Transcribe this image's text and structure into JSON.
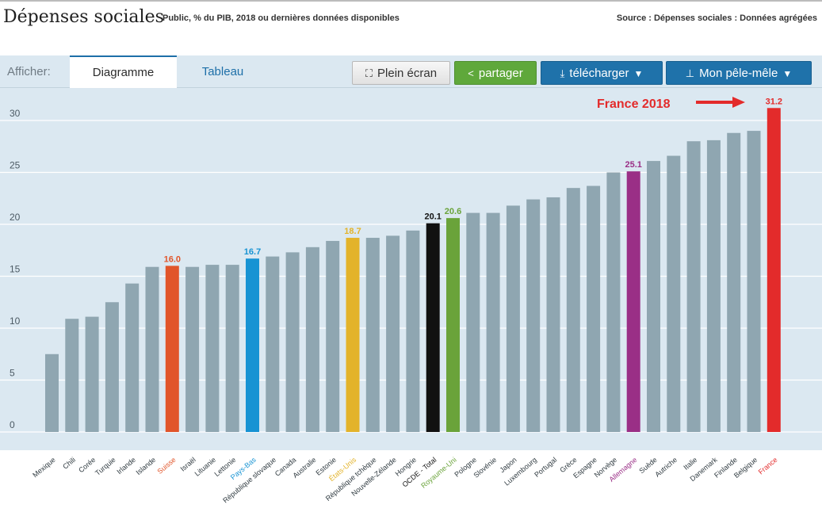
{
  "header": {
    "title": "Dépenses sociales",
    "subtitle": "Public, % du PIB, 2018 ou dernières données disponibles",
    "source": "Source : Dépenses sociales : Données agrégées"
  },
  "toolbar": {
    "show_label": "Afficher:",
    "tabs": [
      {
        "label": "Diagramme",
        "active": true
      },
      {
        "label": "Tableau",
        "active": false
      }
    ],
    "buttons": {
      "fullscreen": "Plein écran",
      "share": "partager",
      "download": "télécharger",
      "pele_mele": "Mon pêle-mêle"
    },
    "icons": {
      "fullscreen": "expand-icon",
      "share": "share-icon",
      "download": "download-icon",
      "pele_mele": "pin-icon"
    }
  },
  "colors": {
    "default_bar": "#8fa6b1",
    "accent_red": "#e32b2b"
  },
  "chart_data": {
    "type": "bar",
    "title": "",
    "xlabel": "",
    "ylabel": "",
    "ylim": [
      0,
      32
    ],
    "yticks": [
      0,
      5,
      10,
      15,
      20,
      25,
      30
    ],
    "grid": true,
    "categories": [
      "Mexique",
      "Chili",
      "Corée",
      "Turquie",
      "Irlande",
      "Islande",
      "Suisse",
      "Israël",
      "Lituanie",
      "Lettonie",
      "Pays-Bas",
      "République slovaque",
      "Canada",
      "Australie",
      "Estonie",
      "États-Unis",
      "République tchèque",
      "Nouvelle-Zélande",
      "Hongrie",
      "OCDE - Total",
      "Royaume-Uni",
      "Pologne",
      "Slovénie",
      "Japon",
      "Luxembourg",
      "Portugal",
      "Grèce",
      "Espagne",
      "Norvège",
      "Allemagne",
      "Suède",
      "Autriche",
      "Italie",
      "Danemark",
      "Finlande",
      "Belgique",
      "France"
    ],
    "values": [
      7.5,
      10.9,
      11.1,
      12.5,
      14.3,
      15.9,
      16.0,
      15.9,
      16.1,
      16.1,
      16.7,
      16.9,
      17.3,
      17.8,
      18.4,
      18.7,
      18.7,
      18.9,
      19.4,
      20.1,
      20.6,
      21.1,
      21.1,
      21.8,
      22.4,
      22.6,
      23.5,
      23.7,
      25.0,
      25.1,
      26.1,
      26.6,
      28.0,
      28.1,
      28.8,
      29.0,
      31.2
    ],
    "highlights": [
      {
        "category": "Suisse",
        "label": "16.0",
        "color": "#e1552a"
      },
      {
        "category": "Pays-Bas",
        "label": "16.7",
        "color": "#1793d3"
      },
      {
        "category": "États-Unis",
        "label": "18.7",
        "color": "#e3b32a"
      },
      {
        "category": "OCDE - Total",
        "label": "20.1",
        "color": "#111111"
      },
      {
        "category": "Royaume-Uni",
        "label": "20.6",
        "color": "#6aa33a"
      },
      {
        "category": "Allemagne",
        "label": "25.1",
        "color": "#9a2f86"
      },
      {
        "category": "France",
        "label": "31.2",
        "color": "#e32b2b"
      }
    ],
    "annotation": {
      "text": "France 2018",
      "color": "#e32b2b"
    }
  }
}
